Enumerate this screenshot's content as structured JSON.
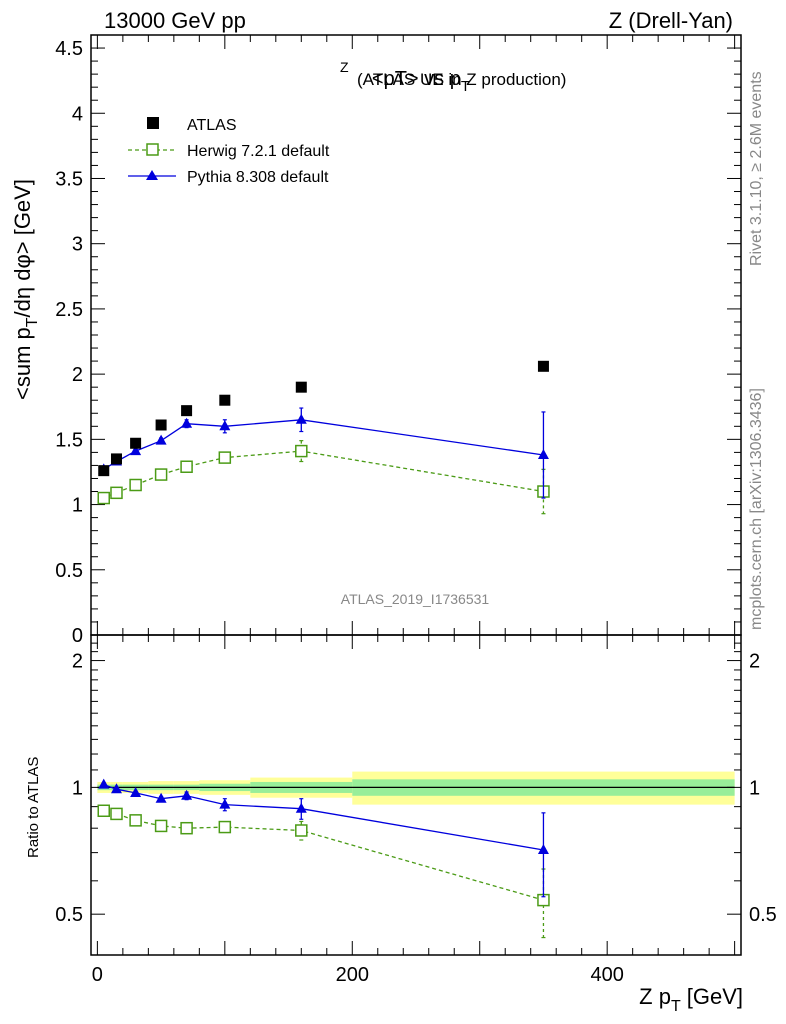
{
  "header": {
    "left": "13000 GeV pp",
    "right": "Z (Drell-Yan)"
  },
  "side_labels": {
    "rivet": "Rivet 3.1.10, ≥ 2.6M events",
    "mcplots": "mcplots.cern.ch [arXiv:1306.3436]"
  },
  "chart_data": [
    {
      "type": "scatter",
      "panel": "main",
      "title_main": "<pT> vs p",
      "title_sup": "Z",
      "title_sub": "T",
      "title_suffix": "(ATLAS UE in Z production)",
      "ylabel_main": "<sum p",
      "ylabel_sub": "T",
      "ylabel_rest": "/dη dφ> [GeV]",
      "analysis_label": "ATLAS_2019_I1736531",
      "ylim": [
        0,
        4.6
      ],
      "xlim": [
        -5,
        505
      ],
      "yticks": [
        0,
        0.5,
        1,
        1.5,
        2,
        2.5,
        3,
        3.5,
        4,
        4.5
      ],
      "ytick_labels": [
        "0",
        "0.5",
        "1",
        "1.5",
        "2",
        "2.5",
        "3",
        "3.5",
        "4",
        "4.5"
      ],
      "legend_position": "top-left",
      "series": [
        {
          "name": "ATLAS",
          "style": "data",
          "color": "#000000",
          "x": [
            5,
            15,
            30,
            50,
            70,
            100,
            160,
            350
          ],
          "y": [
            1.26,
            1.35,
            1.47,
            1.61,
            1.72,
            1.8,
            1.9,
            2.06
          ],
          "err": [
            0,
            0,
            0,
            0,
            0,
            0,
            0,
            0
          ]
        },
        {
          "name": "Herwig 7.2.1 default",
          "style": "herwig",
          "color": "#4b9b16",
          "x": [
            5,
            15,
            30,
            50,
            70,
            100,
            160,
            350
          ],
          "y": [
            1.05,
            1.09,
            1.15,
            1.23,
            1.29,
            1.36,
            1.41,
            1.1
          ],
          "err": [
            0.01,
            0.01,
            0.01,
            0.02,
            0.02,
            0.03,
            0.08,
            0.17
          ]
        },
        {
          "name": "Pythia 8.308 default",
          "style": "pythia",
          "color": "#0000dd",
          "x": [
            5,
            15,
            30,
            50,
            70,
            100,
            160,
            350
          ],
          "y": [
            1.27,
            1.33,
            1.41,
            1.49,
            1.62,
            1.6,
            1.65,
            1.38
          ],
          "err": [
            0.01,
            0.01,
            0.01,
            0.02,
            0.03,
            0.05,
            0.09,
            0.33
          ]
        }
      ]
    },
    {
      "type": "scatter",
      "panel": "ratio",
      "ylabel": "Ratio to ATLAS",
      "xlabel_main": "Z p",
      "xlabel_sub": "T",
      "xlabel_rest": "[GeV]",
      "ylim": [
        0.4,
        2.3
      ],
      "xlim": [
        -5,
        505
      ],
      "xticks": [
        0,
        200,
        400
      ],
      "xtick_labels": [
        "0",
        "200",
        "400"
      ],
      "yticks": [
        0.5,
        1,
        2
      ],
      "ytick_labels": [
        "0.5",
        "1",
        "2"
      ],
      "bands": [
        {
          "x0": 0,
          "x1": 10,
          "y1_lo": 0.985,
          "y1_hi": 1.015,
          "y2_lo": 0.97,
          "y2_hi": 1.03
        },
        {
          "x0": 10,
          "x1": 20,
          "y1_lo": 0.985,
          "y1_hi": 1.015,
          "y2_lo": 0.97,
          "y2_hi": 1.03
        },
        {
          "x0": 20,
          "x1": 40,
          "y1_lo": 0.985,
          "y1_hi": 1.015,
          "y2_lo": 0.97,
          "y2_hi": 1.03
        },
        {
          "x0": 40,
          "x1": 60,
          "y1_lo": 0.985,
          "y1_hi": 1.015,
          "y2_lo": 0.965,
          "y2_hi": 1.035
        },
        {
          "x0": 60,
          "x1": 80,
          "y1_lo": 0.985,
          "y1_hi": 1.015,
          "y2_lo": 0.965,
          "y2_hi": 1.035
        },
        {
          "x0": 80,
          "x1": 120,
          "y1_lo": 0.98,
          "y1_hi": 1.02,
          "y2_lo": 0.96,
          "y2_hi": 1.04
        },
        {
          "x0": 120,
          "x1": 200,
          "y1_lo": 0.97,
          "y1_hi": 1.03,
          "y2_lo": 0.945,
          "y2_hi": 1.055
        },
        {
          "x0": 200,
          "x1": 500,
          "y1_lo": 0.955,
          "y1_hi": 1.045,
          "y2_lo": 0.91,
          "y2_hi": 1.09
        }
      ],
      "series": [
        {
          "name": "Herwig 7.2.1 default",
          "style": "herwig",
          "color": "#4b9b16",
          "x": [
            5,
            15,
            30,
            50,
            70,
            100,
            160,
            350
          ],
          "y": [
            0.88,
            0.865,
            0.835,
            0.81,
            0.8,
            0.805,
            0.79,
            0.54
          ],
          "err": [
            0.01,
            0.01,
            0.01,
            0.01,
            0.01,
            0.02,
            0.04,
            0.1
          ]
        },
        {
          "name": "Pythia 8.308 default",
          "style": "pythia",
          "color": "#0000dd",
          "x": [
            5,
            15,
            30,
            50,
            70,
            100,
            160,
            350
          ],
          "y": [
            1.015,
            0.99,
            0.97,
            0.94,
            0.955,
            0.91,
            0.89,
            0.71
          ],
          "err": [
            0.01,
            0.01,
            0.01,
            0.01,
            0.02,
            0.03,
            0.05,
            0.16
          ]
        }
      ]
    }
  ]
}
